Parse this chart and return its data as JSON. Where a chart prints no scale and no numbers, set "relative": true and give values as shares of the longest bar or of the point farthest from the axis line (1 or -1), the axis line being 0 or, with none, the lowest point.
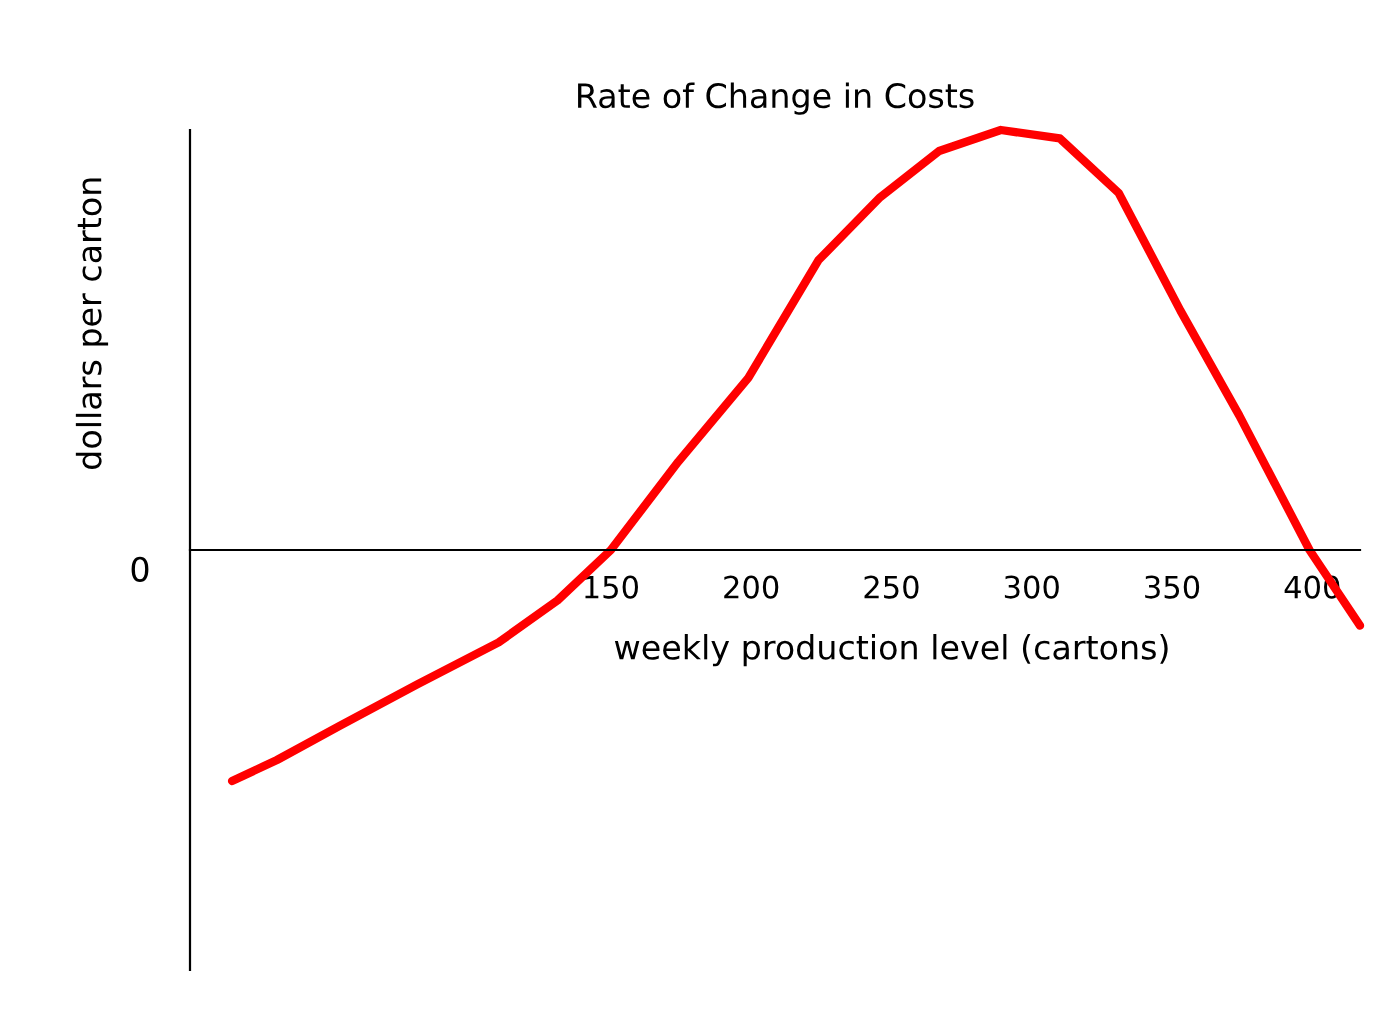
{
  "chart_data": {
    "type": "line",
    "title": "Rate of Change in Costs",
    "xlabel": "weekly production level (cartons)",
    "ylabel": "dollars per carton",
    "relative": true,
    "annotations": [
      "0"
    ],
    "xlim": [
      0,
      417
    ],
    "xticks": [
      150,
      200,
      250,
      300,
      350,
      400
    ],
    "series": [
      {
        "color": "#ff0000",
        "x": [
          15,
          31,
          53,
          81,
          110,
          131,
          150,
          174,
          199,
          224,
          246,
          267,
          289,
          310,
          331,
          353,
          374,
          399,
          417
        ],
        "values": [
          -0.55,
          -0.5,
          -0.42,
          -0.32,
          -0.22,
          -0.12,
          0,
          0.21,
          0.41,
          0.69,
          0.84,
          0.95,
          1.0,
          0.98,
          0.85,
          0.57,
          0.32,
          0,
          -0.18
        ]
      }
    ],
    "grid": false,
    "legend": false,
    "marker": "none",
    "line_style": "solid"
  }
}
